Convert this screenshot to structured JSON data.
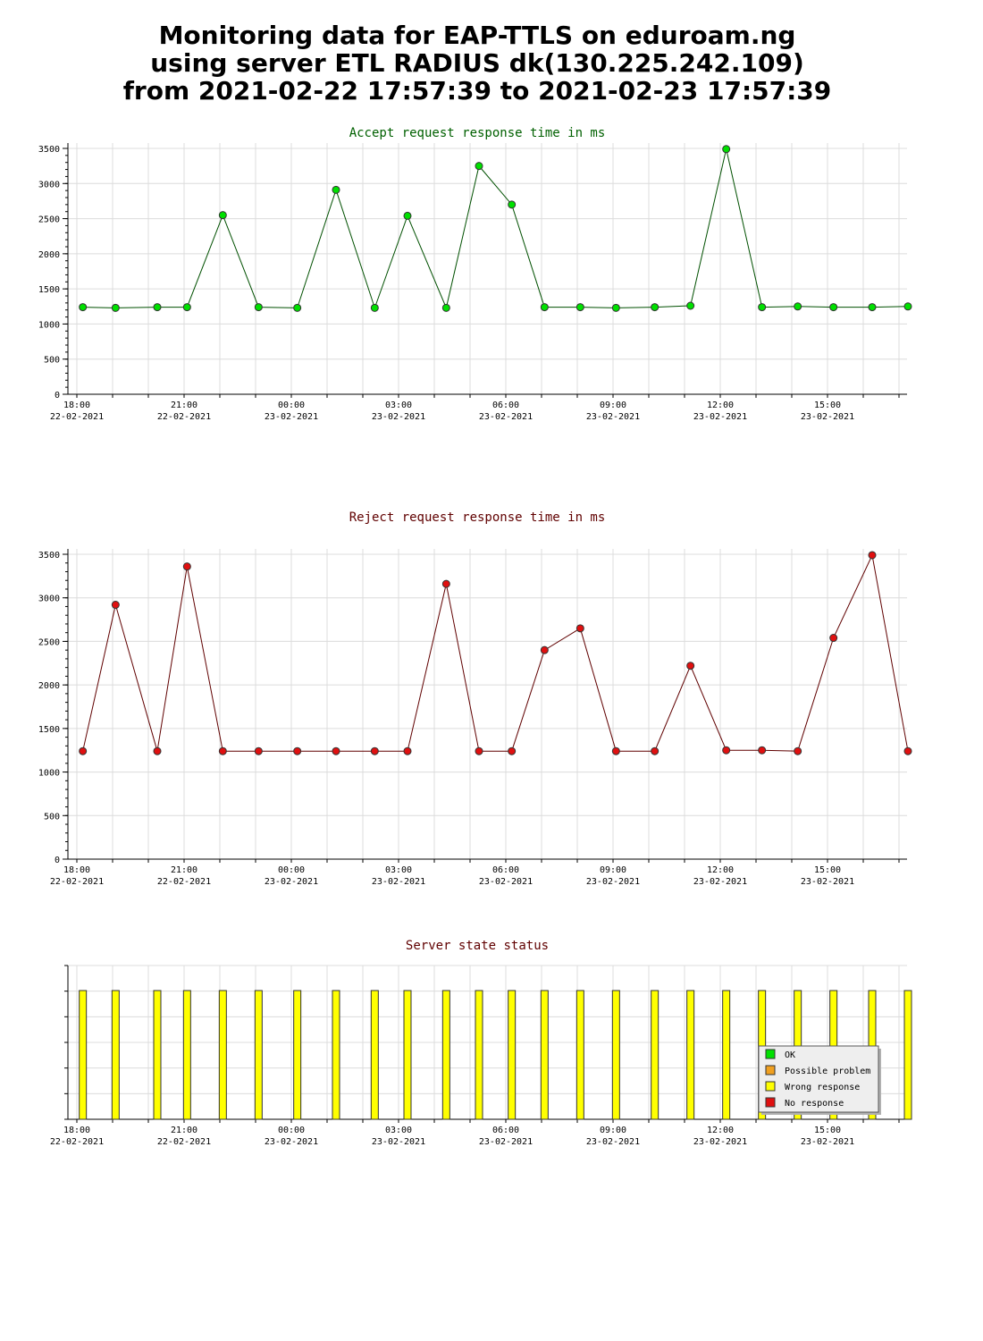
{
  "header": {
    "line1": "Monitoring data for EAP-TTLS on eduroam.ng",
    "line2": "using server ETL RADIUS dk(130.225.242.109)",
    "line3": "from 2021-02-22 17:57:39 to 2021-02-23 17:57:39"
  },
  "colors": {
    "accept_line": "#005000",
    "accept_marker": "#00e000",
    "reject_line": "#600000",
    "reject_marker": "#e01010",
    "title_accept": "#006000",
    "title_reject": "#600000",
    "ok": "#00e000",
    "possible_problem": "#f0a020",
    "wrong_response": "#ffff00",
    "no_response": "#e01010"
  },
  "x_axis": {
    "time_labels": [
      "18:00",
      "21:00",
      "00:00",
      "03:00",
      "06:00",
      "09:00",
      "12:00",
      "15:00"
    ],
    "date_labels": [
      "22-02-2021",
      "22-02-2021",
      "23-02-2021",
      "23-02-2021",
      "23-02-2021",
      "23-02-2021",
      "23-02-2021",
      "23-02-2021"
    ]
  },
  "chart_data": [
    {
      "type": "line",
      "title": "Accept request response time in ms",
      "ylim": [
        0,
        3500
      ],
      "yticks": [
        "0",
        "500",
        "1000",
        "1500",
        "2000",
        "2500",
        "3000",
        "3500"
      ],
      "grid": true,
      "x": [
        "2021-02-22 18:10",
        "2021-02-22 19:05",
        "2021-02-22 20:15",
        "2021-02-22 21:05",
        "2021-02-22 22:05",
        "2021-02-22 23:05",
        "2021-02-23 00:10",
        "2021-02-23 01:15",
        "2021-02-23 02:20",
        "2021-02-23 03:15",
        "2021-02-23 04:20",
        "2021-02-23 05:15",
        "2021-02-23 06:10",
        "2021-02-23 07:05",
        "2021-02-23 08:05",
        "2021-02-23 09:05",
        "2021-02-23 10:10",
        "2021-02-23 11:10",
        "2021-02-23 12:10",
        "2021-02-23 13:10",
        "2021-02-23 14:10",
        "2021-02-23 15:10",
        "2021-02-23 16:15",
        "2021-02-23 17:15"
      ],
      "values": [
        1240,
        1230,
        1240,
        1240,
        2550,
        1240,
        1230,
        2910,
        1230,
        2540,
        1230,
        3250,
        2700,
        1240,
        1240,
        1230,
        1240,
        1260,
        3490,
        1240,
        1250,
        1240,
        1240,
        1250
      ]
    },
    {
      "type": "line",
      "title": "Reject request response time in ms",
      "ylim": [
        0,
        3500
      ],
      "yticks": [
        "0",
        "500",
        "1000",
        "1500",
        "2000",
        "2500",
        "3000",
        "3500"
      ],
      "grid": true,
      "x": [
        "2021-02-22 18:10",
        "2021-02-22 19:05",
        "2021-02-22 20:15",
        "2021-02-22 21:05",
        "2021-02-22 22:05",
        "2021-02-22 23:05",
        "2021-02-23 00:10",
        "2021-02-23 01:15",
        "2021-02-23 02:20",
        "2021-02-23 03:15",
        "2021-02-23 04:20",
        "2021-02-23 05:15",
        "2021-02-23 06:10",
        "2021-02-23 07:05",
        "2021-02-23 08:05",
        "2021-02-23 09:05",
        "2021-02-23 10:10",
        "2021-02-23 11:10",
        "2021-02-23 12:10",
        "2021-02-23 13:10",
        "2021-02-23 14:10",
        "2021-02-23 15:10",
        "2021-02-23 16:15",
        "2021-02-23 17:15"
      ],
      "values": [
        1240,
        2920,
        1240,
        3360,
        1240,
        1240,
        1240,
        1240,
        1240,
        1240,
        3160,
        1240,
        1240,
        2400,
        2650,
        1240,
        1240,
        2220,
        1250,
        1250,
        1240,
        2540,
        3490,
        1240
      ]
    },
    {
      "type": "bar",
      "title": "Server state status",
      "grid": true,
      "x": [
        "2021-02-22 18:10",
        "2021-02-22 19:05",
        "2021-02-22 20:15",
        "2021-02-22 21:05",
        "2021-02-22 22:05",
        "2021-02-22 23:05",
        "2021-02-23 00:10",
        "2021-02-23 01:15",
        "2021-02-23 02:20",
        "2021-02-23 03:15",
        "2021-02-23 04:20",
        "2021-02-23 05:15",
        "2021-02-23 06:10",
        "2021-02-23 07:05",
        "2021-02-23 08:05",
        "2021-02-23 09:05",
        "2021-02-23 10:10",
        "2021-02-23 11:10",
        "2021-02-23 12:10",
        "2021-02-23 13:10",
        "2021-02-23 14:10",
        "2021-02-23 15:10",
        "2021-02-23 16:15",
        "2021-02-23 17:15"
      ],
      "states": [
        "Wrong response",
        "Wrong response",
        "Wrong response",
        "Wrong response",
        "Wrong response",
        "Wrong response",
        "Wrong response",
        "Wrong response",
        "Wrong response",
        "Wrong response",
        "Wrong response",
        "Wrong response",
        "Wrong response",
        "Wrong response",
        "Wrong response",
        "Wrong response",
        "Wrong response",
        "Wrong response",
        "Wrong response",
        "Wrong response",
        "Wrong response",
        "Wrong response",
        "Wrong response",
        "Wrong response"
      ],
      "legend": [
        "OK",
        "Possible problem",
        "Wrong response",
        "No response"
      ],
      "legend_position": "bottom-right"
    }
  ]
}
